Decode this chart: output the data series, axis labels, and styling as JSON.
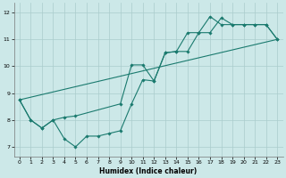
{
  "xlabel": "Humidex (Indice chaleur)",
  "bg_color": "#cce8e8",
  "grid_color": "#aacccc",
  "line_color": "#1a7a6e",
  "xlim": [
    -0.5,
    23.5
  ],
  "ylim": [
    6.65,
    12.35
  ],
  "xticks": [
    0,
    1,
    2,
    3,
    4,
    5,
    6,
    7,
    8,
    9,
    10,
    11,
    12,
    13,
    14,
    15,
    16,
    17,
    18,
    19,
    20,
    21,
    22,
    23
  ],
  "yticks": [
    7,
    8,
    9,
    10,
    11,
    12
  ],
  "line1_x": [
    0,
    1,
    2,
    3,
    4,
    5,
    6,
    7,
    8,
    9,
    10,
    11,
    12,
    13,
    14,
    15,
    16,
    17,
    18,
    19,
    20,
    21,
    22,
    23
  ],
  "line1_y": [
    8.75,
    8.0,
    7.7,
    8.0,
    7.3,
    7.0,
    7.4,
    7.4,
    7.5,
    7.6,
    8.6,
    9.5,
    9.45,
    10.5,
    10.55,
    10.55,
    11.25,
    11.25,
    11.8,
    11.55,
    11.55,
    11.55,
    11.55,
    11.0
  ],
  "line2_x": [
    0,
    1,
    2,
    3,
    4,
    5,
    9,
    10,
    11,
    12,
    13,
    14,
    15,
    16,
    17,
    18,
    19,
    20,
    21,
    22,
    23
  ],
  "line2_y": [
    8.75,
    8.0,
    7.7,
    8.0,
    8.1,
    8.15,
    8.6,
    10.05,
    10.05,
    9.45,
    10.5,
    10.55,
    11.25,
    11.25,
    11.85,
    11.55,
    11.55,
    11.55,
    11.55,
    11.55,
    11.0
  ],
  "line3_x": [
    0,
    23
  ],
  "line3_y": [
    8.75,
    11.0
  ]
}
